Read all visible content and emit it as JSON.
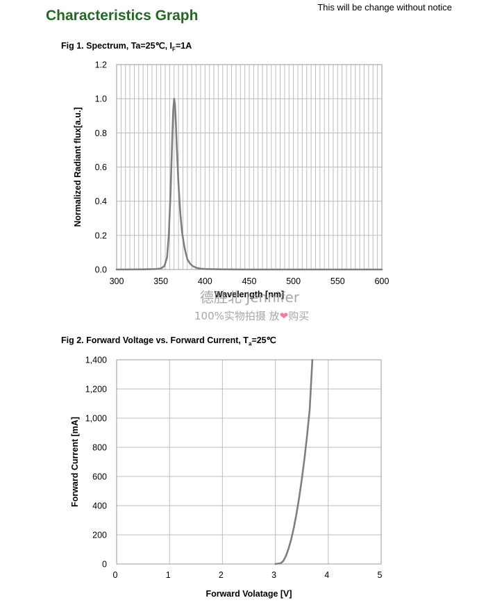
{
  "header": {
    "title": "Characteristics Graph",
    "notice": "This will be change without notice"
  },
  "figures": {
    "fig1_title_main": "Fig 1. Spectrum, Ta=25℃, I",
    "fig1_title_sub": "F",
    "fig1_title_end": "=1A",
    "fig2_title_main": "Fig 2. Forward Voltage vs. Forward Current, T",
    "fig2_title_sub": "a",
    "fig2_title_end": "=25℃"
  },
  "watermark": {
    "line1": "德胜北 Jennifer",
    "line2": "100%实物拍摄  放",
    "line2_end": "购买",
    "heart_color": "#e8577a"
  },
  "chart_data": [
    {
      "type": "line",
      "title": "Fig 1. Spectrum, Ta=25℃, IF=1A",
      "xlabel": "Wavelength [nm]",
      "ylabel": "Normalized Radiant flux[a.u.]",
      "xlim": [
        300,
        600
      ],
      "ylim": [
        0,
        1.2
      ],
      "xticks": [
        "300",
        "350",
        "400",
        "450",
        "500",
        "550",
        "600"
      ],
      "yticks": [
        "0.0",
        "0.2",
        "0.4",
        "0.6",
        "0.8",
        "1.0",
        "1.2"
      ],
      "grid": true,
      "line_color": "#7f7f7f",
      "series": [
        {
          "x": [
            300,
            330,
            345,
            350,
            354,
            357,
            359,
            361,
            363,
            364,
            365,
            366,
            367,
            368,
            370,
            372,
            374,
            376,
            378,
            380,
            383,
            386,
            390,
            395,
            400,
            420,
            450,
            500,
            550,
            600
          ],
          "y": [
            0.0,
            0.001,
            0.003,
            0.006,
            0.02,
            0.07,
            0.2,
            0.45,
            0.78,
            0.93,
            1.0,
            0.97,
            0.86,
            0.72,
            0.5,
            0.33,
            0.22,
            0.15,
            0.1,
            0.06,
            0.035,
            0.02,
            0.01,
            0.005,
            0.003,
            0.001,
            0.0,
            0.0,
            0.0,
            0.0
          ]
        }
      ]
    },
    {
      "type": "line",
      "title": "Fig 2. Forward Voltage vs. Forward Current, Ta=25℃",
      "xlabel": "Forward  Volatage [V]",
      "ylabel": "Forward Current [mA]",
      "xlim": [
        0,
        5
      ],
      "ylim": [
        0,
        1400
      ],
      "xticks": [
        "0",
        "1",
        "2",
        "3",
        "4",
        "5"
      ],
      "yticks": [
        "0",
        "200",
        "400",
        "600",
        "800",
        "1,000",
        "1,200",
        "1,400"
      ],
      "grid": true,
      "line_color": "#7f7f7f",
      "series": [
        {
          "x": [
            3.0,
            3.1,
            3.15,
            3.2,
            3.25,
            3.3,
            3.35,
            3.4,
            3.45,
            3.5,
            3.55,
            3.6,
            3.65,
            3.7
          ],
          "y": [
            0,
            5,
            20,
            55,
            105,
            170,
            250,
            345,
            455,
            580,
            720,
            880,
            1060,
            1400
          ]
        }
      ]
    }
  ]
}
